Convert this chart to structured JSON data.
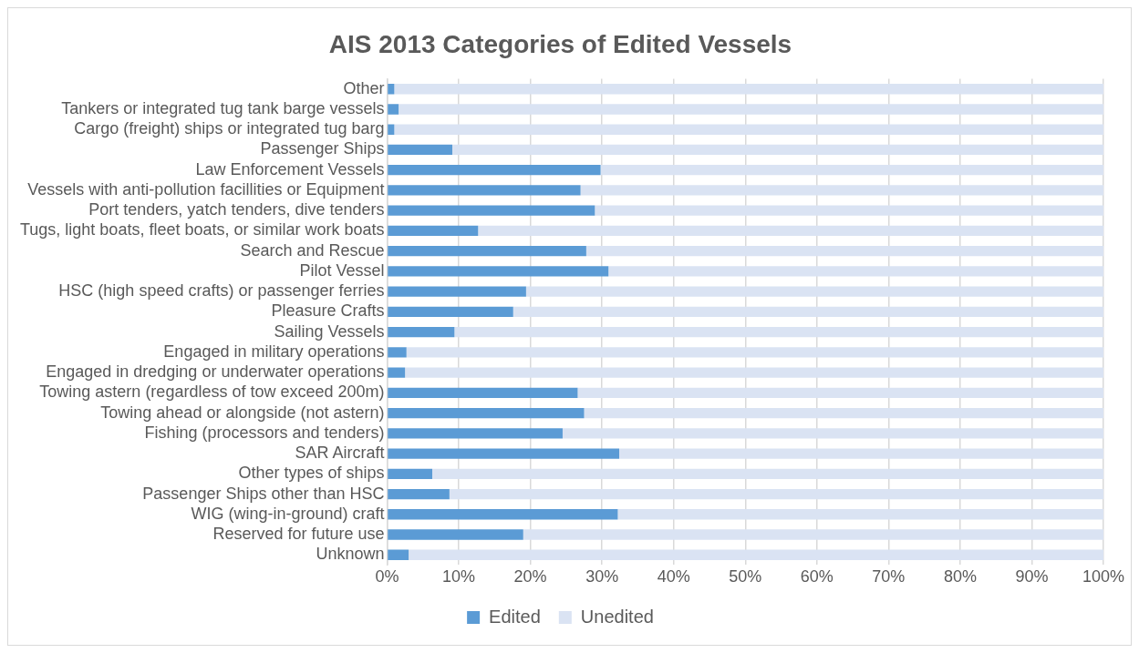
{
  "chart_data": {
    "type": "bar",
    "orientation": "horizontal",
    "stacked": true,
    "title": "AIS 2013 Categories of Edited Vessels",
    "categories": [
      "Other",
      "Tankers or integrated tug tank barge vessels",
      "Cargo (freight) ships or integrated tug barg",
      "Passenger Ships",
      "Law Enforcement Vessels",
      "Vessels with anti-pollution facillities or Equipment",
      "Port tenders, yatch tenders, dive tenders",
      "Tugs, light boats, fleet boats, or similar work boats",
      "Search and Rescue",
      "Pilot Vessel",
      "HSC (high speed crafts) or passenger ferries",
      "Pleasure Crafts",
      "Sailing Vessels",
      "Engaged in military operations",
      "Engaged in dredging or underwater operations",
      "Towing astern (regardless of tow exceed 200m)",
      "Towing ahead or alongside (not astern)",
      "Fishing (processors and tenders)",
      "SAR Aircraft",
      "Other types of ships",
      "Passenger Ships other than HSC",
      "WIG (wing-in-ground) craft",
      "Reserved for future use",
      "Unknown"
    ],
    "series": [
      {
        "name": "Edited",
        "color": "#5b9bd5",
        "values": [
          1.0,
          1.6,
          1.0,
          9.1,
          29.8,
          27.0,
          29.0,
          12.7,
          27.8,
          30.9,
          19.4,
          17.6,
          9.4,
          2.7,
          2.5,
          26.6,
          27.5,
          24.5,
          32.4,
          6.3,
          8.7,
          32.2,
          19.0,
          3.0
        ]
      },
      {
        "name": "Unedited",
        "color": "#dae3f3",
        "values": [
          99.0,
          98.4,
          99.0,
          90.9,
          70.2,
          73.0,
          71.0,
          87.3,
          72.2,
          69.1,
          80.6,
          82.4,
          90.6,
          97.3,
          97.5,
          73.4,
          72.5,
          75.5,
          67.6,
          93.7,
          91.3,
          67.8,
          81.0,
          97.0
        ]
      }
    ],
    "xlim": [
      0,
      100
    ],
    "xticks": [
      {
        "value": 0,
        "label": "0%"
      },
      {
        "value": 10,
        "label": "10%"
      },
      {
        "value": 20,
        "label": "20%"
      },
      {
        "value": 30,
        "label": "30%"
      },
      {
        "value": 40,
        "label": "40%"
      },
      {
        "value": 50,
        "label": "50%"
      },
      {
        "value": 60,
        "label": "60%"
      },
      {
        "value": 70,
        "label": "70%"
      },
      {
        "value": 80,
        "label": "80%"
      },
      {
        "value": 90,
        "label": "90%"
      },
      {
        "value": 100,
        "label": "100%"
      }
    ],
    "grid": "x",
    "legend": "bottom"
  }
}
